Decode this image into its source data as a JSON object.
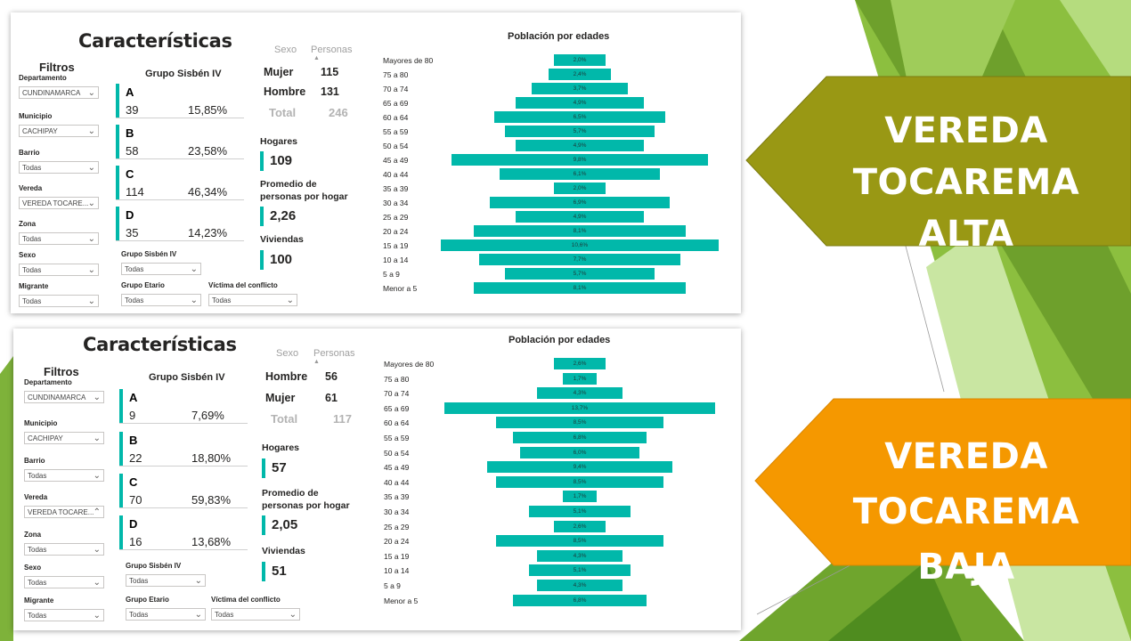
{
  "theme": {
    "accent": "#01b8aa",
    "olive_arrow": "#999814",
    "orange_arrow": "#f59800"
  },
  "arrows": {
    "alta": {
      "line1": "VEREDA",
      "line2": "TOCAREMA ALTA"
    },
    "baja": {
      "line1": "VEREDA",
      "line2": "TOCAREMA BAJA"
    }
  },
  "panels": [
    {
      "title": "Características",
      "filters_title": "Filtros",
      "filters": [
        {
          "label": "Departamento",
          "value": "CUNDINAMARCA",
          "chevron": "chevron-down"
        },
        {
          "label": "Municipio",
          "value": "CACHIPAY",
          "chevron": "chevron-down"
        },
        {
          "label": "Barrio",
          "value": "Todas",
          "chevron": "chevron-down"
        },
        {
          "label": "Vereda",
          "value": "VEREDA TOCARE...",
          "chevron": "chevron-down"
        },
        {
          "label": "Zona",
          "value": "Todas",
          "chevron": "chevron-down"
        },
        {
          "label": "Sexo",
          "value": "Todas",
          "chevron": "chevron-down"
        },
        {
          "label": "Migrante",
          "value": "Todas",
          "chevron": "chevron-down"
        }
      ],
      "extra_filters": [
        {
          "label": "Grupo Sisbén IV",
          "value": "Todas"
        },
        {
          "label": "Grupo Etario",
          "value": "Todas"
        },
        {
          "label": "Víctima del conflicto",
          "value": "Todas"
        }
      ],
      "sisben_title": "Grupo Sisbén IV",
      "sisben": [
        {
          "letter": "A",
          "count": "39",
          "pct": "15,85%"
        },
        {
          "letter": "B",
          "count": "58",
          "pct": "23,58%"
        },
        {
          "letter": "C",
          "count": "114",
          "pct": "46,34%"
        },
        {
          "letter": "D",
          "count": "35",
          "pct": "14,23%"
        }
      ],
      "sex_header": {
        "col1": "Sexo",
        "col2": "Personas"
      },
      "sex_rows": [
        {
          "label": "Mujer",
          "value": "115"
        },
        {
          "label": "Hombre",
          "value": "131"
        }
      ],
      "sex_total": {
        "label": "Total",
        "value": "246"
      },
      "kpis": [
        {
          "label1": "Hogares",
          "label2": "",
          "value": "109"
        },
        {
          "label1": "Promedio de",
          "label2": "personas por hogar",
          "value": "2,26"
        },
        {
          "label1": "Viviendas",
          "label2": "",
          "value": "100"
        }
      ],
      "chart_title": "Población por edades"
    },
    {
      "title": "Características",
      "filters_title": "Filtros",
      "filters": [
        {
          "label": "Departamento",
          "value": "CUNDINAMARCA",
          "chevron": "chevron-down"
        },
        {
          "label": "Municipio",
          "value": "CACHIPAY",
          "chevron": "chevron-down"
        },
        {
          "label": "Barrio",
          "value": "Todas",
          "chevron": "chevron-down"
        },
        {
          "label": "Vereda",
          "value": "VEREDA TOCARE...",
          "chevron": "chevron-up"
        },
        {
          "label": "Zona",
          "value": "Todas",
          "chevron": "chevron-down"
        },
        {
          "label": "Sexo",
          "value": "Todas",
          "chevron": "chevron-down"
        },
        {
          "label": "Migrante",
          "value": "Todas",
          "chevron": "chevron-down"
        }
      ],
      "extra_filters": [
        {
          "label": "Grupo Sisbén IV",
          "value": "Todas"
        },
        {
          "label": "Grupo Etario",
          "value": "Todas"
        },
        {
          "label": "Víctima del conflicto",
          "value": "Todas"
        }
      ],
      "sisben_title": "Grupo Sisbén IV",
      "sisben": [
        {
          "letter": "A",
          "count": "9",
          "pct": "7,69%"
        },
        {
          "letter": "B",
          "count": "22",
          "pct": "18,80%"
        },
        {
          "letter": "C",
          "count": "70",
          "pct": "59,83%"
        },
        {
          "letter": "D",
          "count": "16",
          "pct": "13,68%"
        }
      ],
      "sex_header": {
        "col1": "Sexo",
        "col2": "Personas"
      },
      "sex_rows": [
        {
          "label": "Hombre",
          "value": "56"
        },
        {
          "label": "Mujer",
          "value": "61"
        }
      ],
      "sex_total": {
        "label": "Total",
        "value": "117"
      },
      "kpis": [
        {
          "label1": "Hogares",
          "label2": "",
          "value": "57"
        },
        {
          "label1": "Promedio de",
          "label2": "personas por hogar",
          "value": "2,05"
        },
        {
          "label1": "Viviendas",
          "label2": "",
          "value": "51"
        }
      ],
      "chart_title": "Población por edades"
    }
  ],
  "chart_data": [
    {
      "type": "bar",
      "title": "Población por edades",
      "categories": [
        "Mayores de 80",
        "75 a 80",
        "70 a 74",
        "65 a 69",
        "60 a 64",
        "55 a 59",
        "50 a 54",
        "45 a 49",
        "40 a 44",
        "35 a 39",
        "30 a 34",
        "25 a 29",
        "20 a 24",
        "15 a 19",
        "10 a 14",
        "5 a 9",
        "Menor a 5"
      ],
      "values": [
        2.0,
        2.4,
        3.7,
        4.9,
        6.5,
        5.7,
        4.9,
        9.8,
        6.1,
        2.0,
        6.9,
        4.9,
        8.1,
        10.6,
        7.7,
        5.7,
        8.1
      ],
      "labels": [
        "2,0%",
        "2,4%",
        "3,7%",
        "4,9%",
        "6,5%",
        "5,7%",
        "4,9%",
        "9,8%",
        "6,1%",
        "2,0%",
        "6,9%",
        "4,9%",
        "8,1%",
        "10,6%",
        "7,7%",
        "5,7%",
        "8,1%"
      ],
      "orientation": "horizontal-centered"
    },
    {
      "type": "bar",
      "title": "Población por edades",
      "categories": [
        "Mayores de 80",
        "75 a 80",
        "70 a 74",
        "65 a 69",
        "60 a 64",
        "55 a 59",
        "50 a 54",
        "45 a 49",
        "40 a 44",
        "35 a 39",
        "30 a 34",
        "25 a 29",
        "20 a 24",
        "15 a 19",
        "10 a 14",
        "5 a 9",
        "Menor a 5"
      ],
      "values": [
        2.6,
        1.7,
        4.3,
        13.7,
        8.5,
        6.8,
        6.0,
        9.4,
        8.5,
        1.7,
        5.1,
        2.6,
        8.5,
        4.3,
        5.1,
        4.3,
        6.8
      ],
      "labels": [
        "2,6%",
        "1,7%",
        "4,3%",
        "13,7%",
        "8,5%",
        "6,8%",
        "6,0%",
        "9,4%",
        "8,5%",
        "1,7%",
        "5,1%",
        "2,6%",
        "8,5%",
        "4,3%",
        "5,1%",
        "4,3%",
        "6,8%"
      ],
      "orientation": "horizontal-centered"
    }
  ]
}
